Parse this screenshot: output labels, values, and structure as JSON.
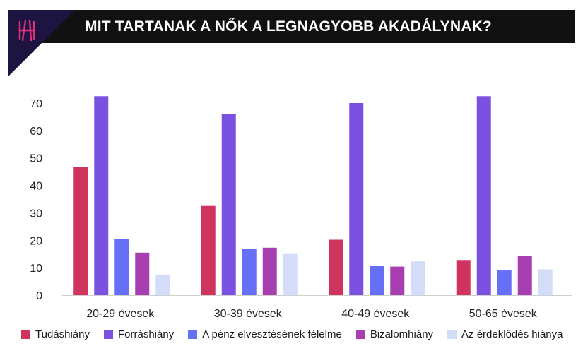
{
  "header": {
    "title": "MIT TARTANAK A NŐK A LEGNAGYOBB AKADÁLYNAK?",
    "logo_icon": "h-logo-icon"
  },
  "chart_data": {
    "type": "bar",
    "title": "MIT TARTANAK A NŐK A LEGNAGYOBB AKADÁLYNAK?",
    "xlabel": "",
    "ylabel": "",
    "categories": [
      "20-29 évesek",
      "30-39 évesek",
      "40-49 évesek",
      "50-65 évesek"
    ],
    "ylim": [
      0,
      73
    ],
    "yticks": [
      0,
      10,
      20,
      30,
      40,
      50,
      60,
      70
    ],
    "grid": false,
    "legend_position": "bottom",
    "series": [
      {
        "name": "Tudáshiány",
        "color": "#d1335f",
        "values": [
          46.8,
          32.5,
          20.2,
          12.8
        ]
      },
      {
        "name": "Forráshiány",
        "color": "#7b52e0",
        "values": [
          72.5,
          66,
          70,
          72.5
        ]
      },
      {
        "name": "A pénz elvesztésének félelme",
        "color": "#6670f7",
        "values": [
          20.5,
          16.8,
          10.8,
          9
        ]
      },
      {
        "name": "Bizalomhiány",
        "color": "#a83fb1",
        "values": [
          15.5,
          17.3,
          10.4,
          14.3
        ]
      },
      {
        "name": "Az érdeklődés hiánya",
        "color": "#d4ddf8",
        "values": [
          7.5,
          15,
          12.3,
          9.4
        ]
      }
    ]
  }
}
